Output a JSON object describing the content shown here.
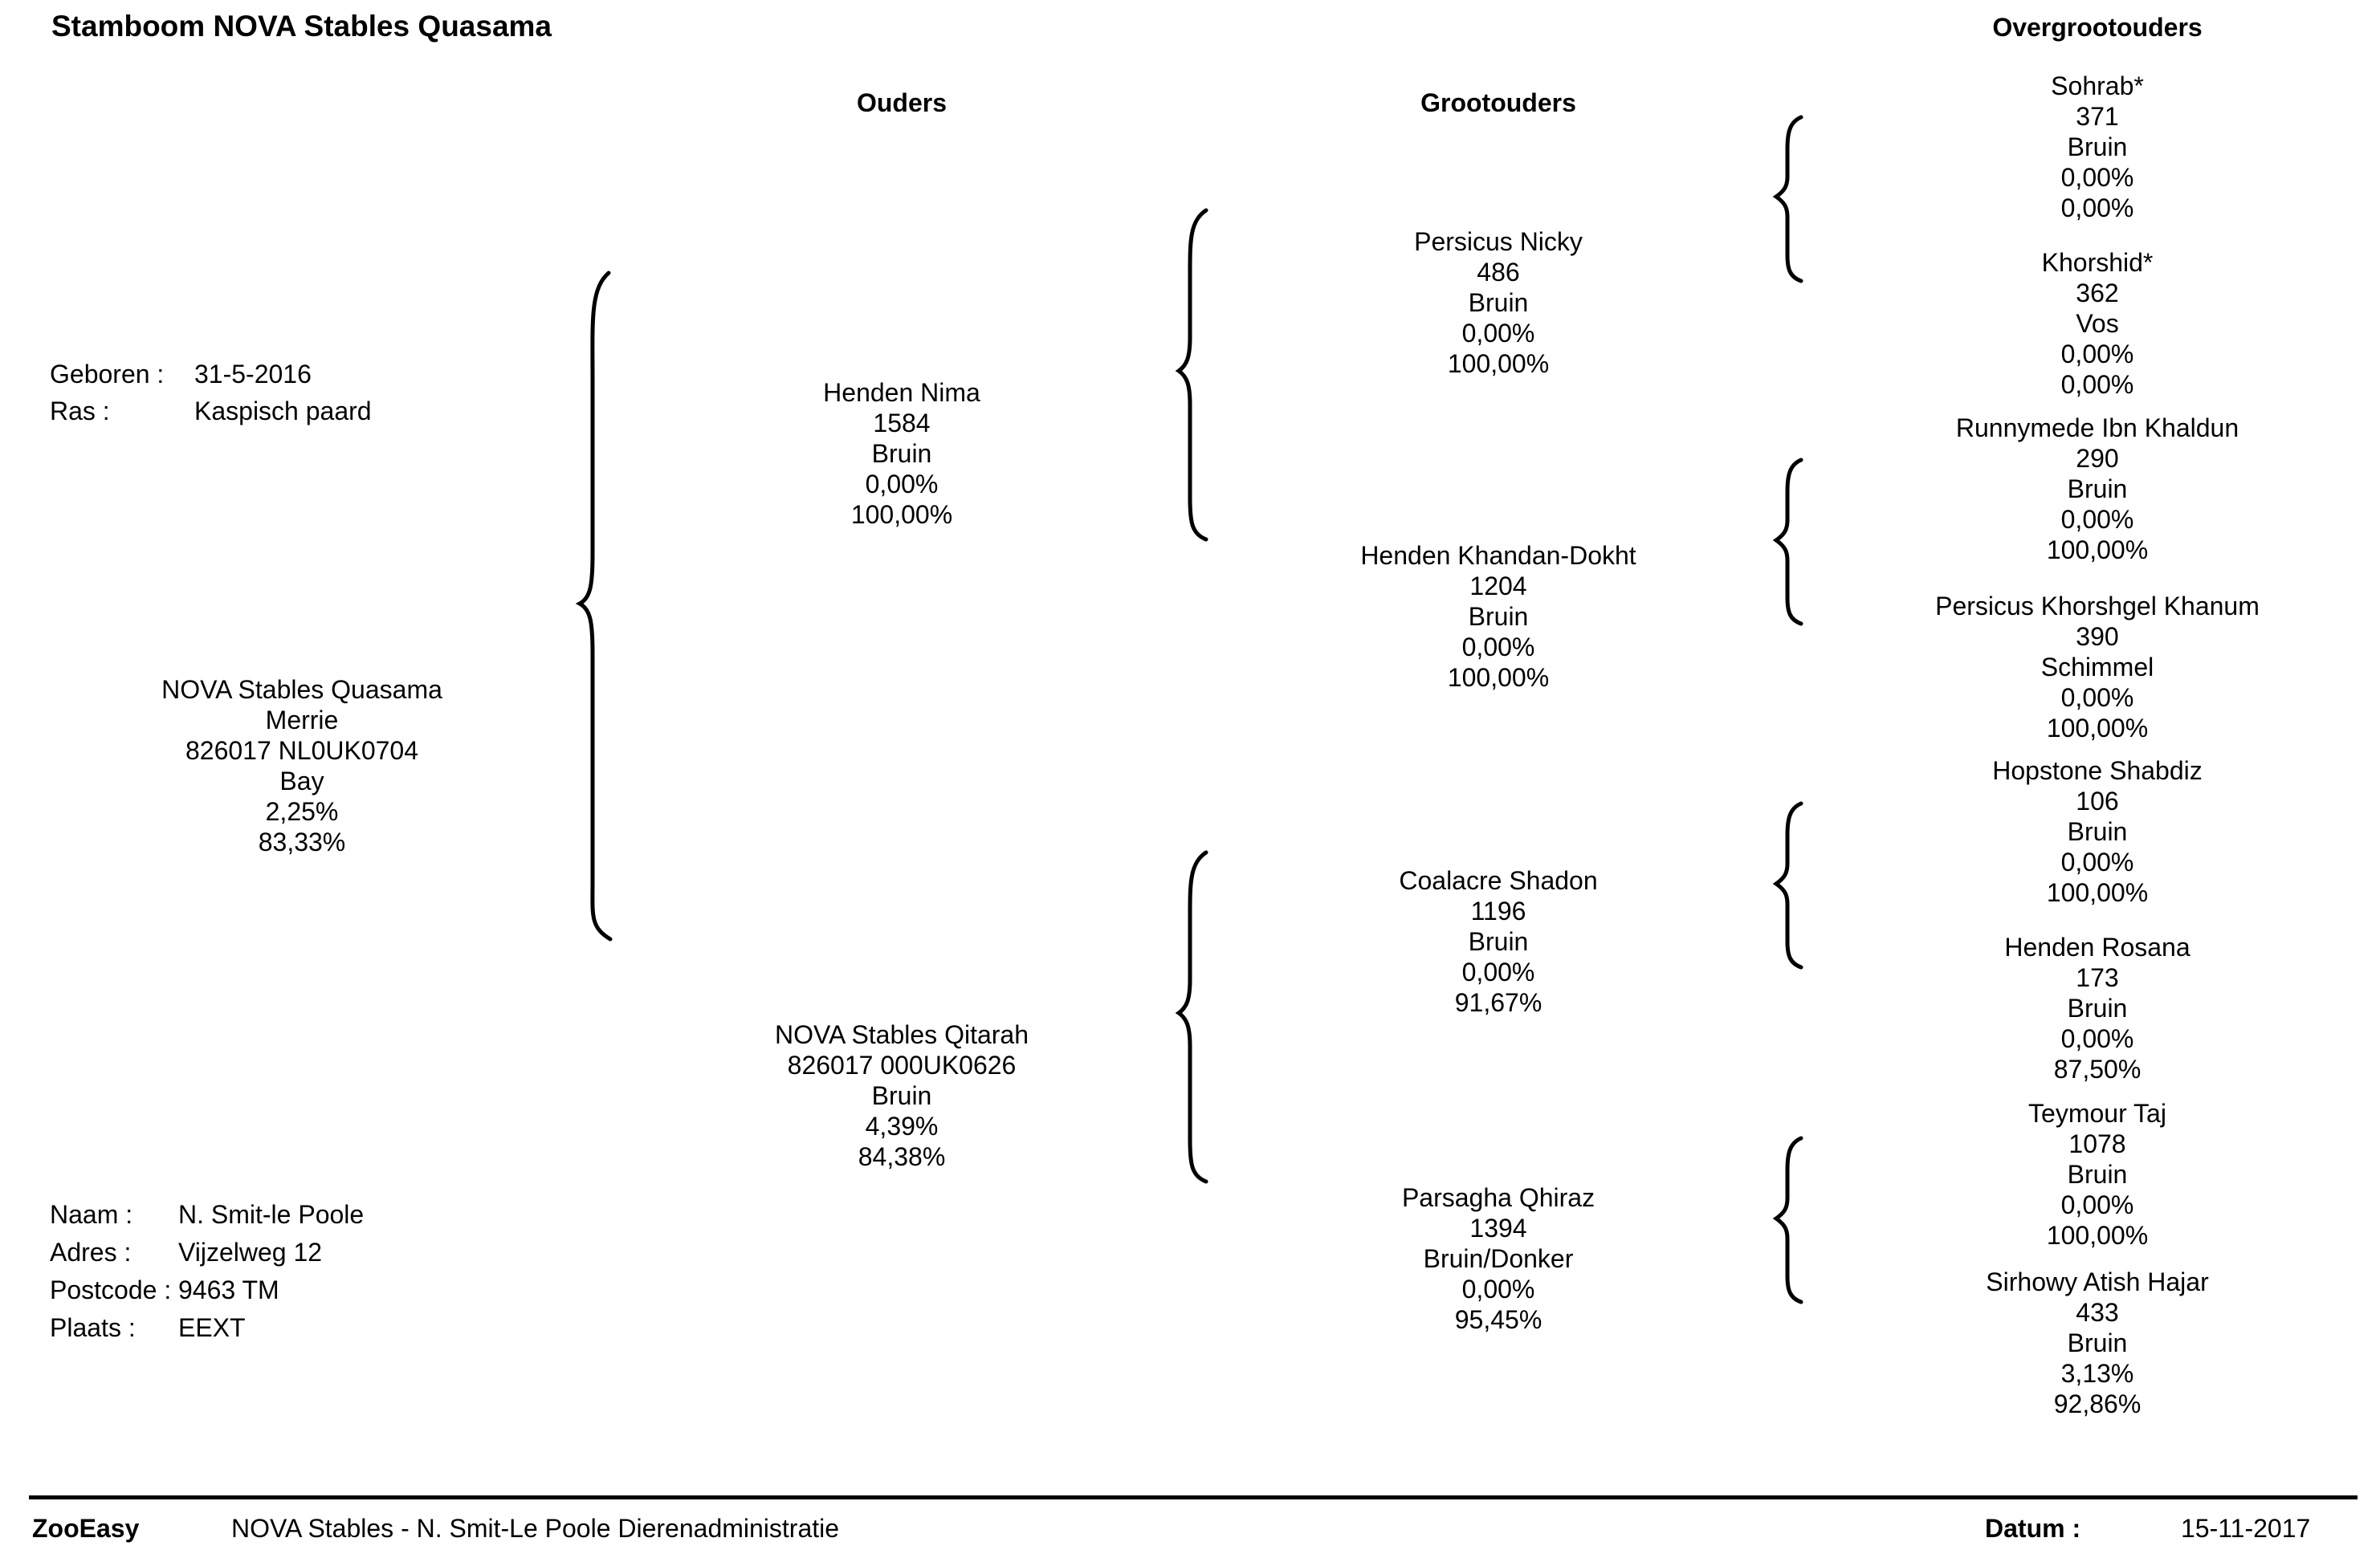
{
  "title": "Stamboom NOVA Stables Quasama",
  "headers": {
    "parents": "Ouders",
    "grandparents": "Grootouders",
    "great_grandparents": "Overgrootouders"
  },
  "animal_info": {
    "born_label": "Geboren :",
    "born_value": "31-5-2016",
    "breed_label": "Ras :",
    "breed_value": "Kaspisch paard"
  },
  "subject": {
    "lines": [
      "NOVA Stables Quasama",
      "Merrie",
      "826017 NL0UK0704",
      "Bay",
      "2,25%",
      "83,33%"
    ]
  },
  "parents": [
    {
      "lines": [
        "Henden Nima",
        "1584",
        "Bruin",
        "0,00%",
        "100,00%"
      ]
    },
    {
      "lines": [
        "NOVA Stables Qitarah",
        "826017 000UK0626",
        "Bruin",
        "4,39%",
        "84,38%"
      ]
    }
  ],
  "grandparents": [
    {
      "lines": [
        "Persicus Nicky",
        "486",
        "Bruin",
        "0,00%",
        "100,00%"
      ]
    },
    {
      "lines": [
        "Henden Khandan-Dokht",
        "1204",
        "Bruin",
        "0,00%",
        "100,00%"
      ]
    },
    {
      "lines": [
        "Coalacre Shadon",
        "1196",
        "Bruin",
        "0,00%",
        "91,67%"
      ]
    },
    {
      "lines": [
        "Parsagha Qhiraz",
        "1394",
        "Bruin/Donker",
        "0,00%",
        "95,45%"
      ]
    }
  ],
  "great_grandparents": [
    {
      "lines": [
        "Sohrab*",
        "371",
        "Bruin",
        "0,00%",
        "0,00%"
      ]
    },
    {
      "lines": [
        "Khorshid*",
        "362",
        "Vos",
        "0,00%",
        "0,00%"
      ]
    },
    {
      "lines": [
        "Runnymede Ibn Khaldun",
        "290",
        "Bruin",
        "0,00%",
        "100,00%"
      ]
    },
    {
      "lines": [
        "Persicus Khorshgel Khanum",
        "390",
        "Schimmel",
        "0,00%",
        "100,00%"
      ]
    },
    {
      "lines": [
        "Hopstone Shabdiz",
        "106",
        "Bruin",
        "0,00%",
        "100,00%"
      ]
    },
    {
      "lines": [
        "Henden Rosana",
        "173",
        "Bruin",
        "0,00%",
        "87,50%"
      ]
    },
    {
      "lines": [
        "Teymour Taj",
        "1078",
        "Bruin",
        "0,00%",
        "100,00%"
      ]
    },
    {
      "lines": [
        "Sirhowy Atish Hajar",
        "433",
        "Bruin",
        "3,13%",
        "92,86%"
      ]
    }
  ],
  "owner": {
    "name_label": "Naam :",
    "name_value": "N.  Smit-le Poole",
    "address_label": "Adres :",
    "address_value": "Vijzelweg 12",
    "postcode_label": "Postcode :",
    "postcode_value": "9463 TM",
    "city_label": "Plaats :",
    "city_value": "EEXT"
  },
  "footer": {
    "brand": "ZooEasy",
    "org": "NOVA Stables - N. Smit-Le Poole Dierenadministratie",
    "date_label": "Datum :",
    "date_value": "15-11-2017"
  }
}
